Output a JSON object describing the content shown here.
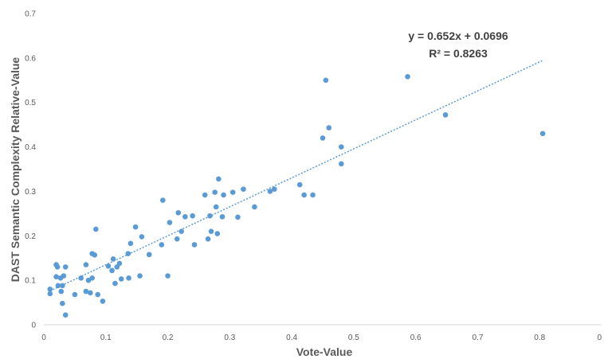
{
  "chart_data": {
    "type": "scatter",
    "xlabel": "Vote-Value",
    "ylabel": "DAST Semantic Complexity Relative-Value",
    "xlim": [
      0,
      0.9
    ],
    "ylim": [
      0,
      0.7
    ],
    "x_ticks": [
      "0",
      "0.1",
      "0.2",
      "0.3",
      "0.4",
      "0.5",
      "0.6",
      "0.7",
      "0.8",
      "0"
    ],
    "y_ticks": [
      "0",
      "0.1",
      "0.2",
      "0.3",
      "0.4",
      "0.5",
      "0.6",
      "0.7"
    ],
    "grid": false,
    "point_color": "#5B9BD5",
    "trendline": {
      "type": "linear",
      "slope": 0.652,
      "intercept": 0.0696,
      "x_range": [
        0.01,
        0.805
      ],
      "equation_label": "y = 0.652x + 0.0696",
      "r2_label": "R² = 0.8263",
      "color": "#5B9BD5"
    },
    "points": [
      [
        0.01,
        0.08
      ],
      [
        0.01,
        0.07
      ],
      [
        0.02,
        0.135
      ],
      [
        0.022,
        0.13
      ],
      [
        0.02,
        0.108
      ],
      [
        0.023,
        0.088
      ],
      [
        0.027,
        0.105
      ],
      [
        0.028,
        0.075
      ],
      [
        0.03,
        0.088
      ],
      [
        0.032,
        0.11
      ],
      [
        0.03,
        0.048
      ],
      [
        0.035,
        0.13
      ],
      [
        0.035,
        0.022
      ],
      [
        0.05,
        0.068
      ],
      [
        0.06,
        0.105
      ],
      [
        0.068,
        0.135
      ],
      [
        0.068,
        0.075
      ],
      [
        0.072,
        0.1
      ],
      [
        0.075,
        0.072
      ],
      [
        0.078,
        0.105
      ],
      [
        0.078,
        0.16
      ],
      [
        0.082,
        0.157
      ],
      [
        0.084,
        0.215
      ],
      [
        0.087,
        0.068
      ],
      [
        0.095,
        0.053
      ],
      [
        0.104,
        0.132
      ],
      [
        0.11,
        0.122
      ],
      [
        0.112,
        0.148
      ],
      [
        0.115,
        0.093
      ],
      [
        0.118,
        0.13
      ],
      [
        0.122,
        0.138
      ],
      [
        0.125,
        0.103
      ],
      [
        0.136,
        0.16
      ],
      [
        0.137,
        0.105
      ],
      [
        0.14,
        0.183
      ],
      [
        0.148,
        0.22
      ],
      [
        0.155,
        0.11
      ],
      [
        0.158,
        0.198
      ],
      [
        0.17,
        0.158
      ],
      [
        0.19,
        0.18
      ],
      [
        0.192,
        0.28
      ],
      [
        0.2,
        0.11
      ],
      [
        0.203,
        0.23
      ],
      [
        0.215,
        0.193
      ],
      [
        0.217,
        0.252
      ],
      [
        0.222,
        0.21
      ],
      [
        0.228,
        0.243
      ],
      [
        0.24,
        0.245
      ],
      [
        0.243,
        0.18
      ],
      [
        0.26,
        0.292
      ],
      [
        0.265,
        0.193
      ],
      [
        0.268,
        0.245
      ],
      [
        0.27,
        0.21
      ],
      [
        0.276,
        0.298
      ],
      [
        0.278,
        0.265
      ],
      [
        0.28,
        0.205
      ],
      [
        0.282,
        0.328
      ],
      [
        0.288,
        0.243
      ],
      [
        0.29,
        0.292
      ],
      [
        0.305,
        0.298
      ],
      [
        0.313,
        0.242
      ],
      [
        0.322,
        0.305
      ],
      [
        0.34,
        0.265
      ],
      [
        0.365,
        0.3
      ],
      [
        0.372,
        0.305
      ],
      [
        0.413,
        0.315
      ],
      [
        0.42,
        0.292
      ],
      [
        0.434,
        0.292
      ],
      [
        0.45,
        0.42
      ],
      [
        0.455,
        0.55
      ],
      [
        0.46,
        0.443
      ],
      [
        0.48,
        0.4
      ],
      [
        0.48,
        0.362
      ],
      [
        0.587,
        0.558
      ],
      [
        0.648,
        0.472
      ],
      [
        0.805,
        0.43
      ]
    ]
  }
}
